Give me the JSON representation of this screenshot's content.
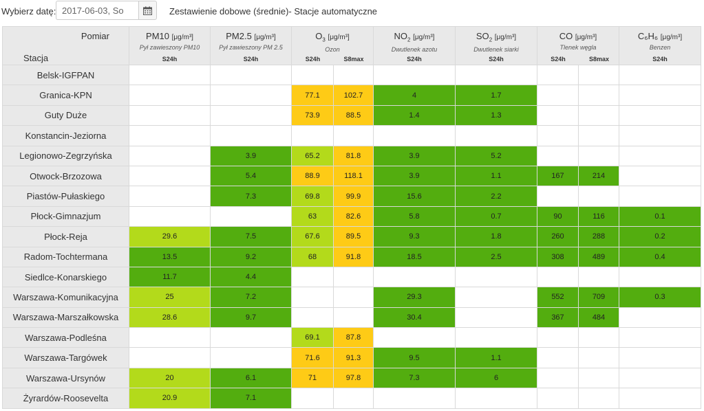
{
  "topbar": {
    "date_label": "Wybierz datę:",
    "date_value": "2017-06-03, So",
    "calendar_icon": "calendar-icon",
    "title": "Zestawienie dobowe (średnie)- Stacje automatyczne"
  },
  "table": {
    "corner_measure": "Pomiar",
    "corner_station": "Stacja",
    "unit": "[μg/m³]",
    "pollutants": [
      {
        "name": "PM10",
        "desc": "Pył zawieszony PM10",
        "types": [
          "S24h"
        ]
      },
      {
        "name": "PM2.5",
        "desc": "Pył zawieszony PM 2.5",
        "types": [
          "S24h"
        ]
      },
      {
        "name": "O",
        "sub": "3",
        "desc": "Ozon",
        "types": [
          "S24h",
          "S8max"
        ]
      },
      {
        "name": "NO",
        "sub": "2",
        "desc": "Dwutlenek azotu",
        "types": [
          "S24h"
        ]
      },
      {
        "name": "SO",
        "sub": "2",
        "desc": "Dwutlenek siarki",
        "types": [
          "S24h"
        ]
      },
      {
        "name": "CO",
        "desc": "Tlenek węgla",
        "types": [
          "S24h",
          "S8max"
        ]
      },
      {
        "name": "C₆H₆",
        "desc": "Benzen",
        "types": [
          "S24h"
        ]
      }
    ],
    "colors": {
      "green": "#53ad0f",
      "lime": "#b3da1b",
      "yellow": "#fecb16"
    },
    "rows": [
      {
        "station": "Belsk-IGFPAN",
        "cells": [
          [
            "",
            ""
          ],
          [
            "",
            ""
          ],
          [
            "",
            ""
          ],
          [
            "",
            ""
          ],
          [
            "",
            ""
          ],
          [
            "",
            ""
          ],
          [
            "",
            ""
          ],
          [
            "",
            ""
          ],
          [
            "",
            ""
          ]
        ]
      },
      {
        "station": "Granica-KPN",
        "cells": [
          [
            "",
            ""
          ],
          [
            "",
            ""
          ],
          [
            "77.1",
            "yellow"
          ],
          [
            "102.7",
            "yellow"
          ],
          [
            "4",
            "green"
          ],
          [
            "1.7",
            "green"
          ],
          [
            "",
            ""
          ],
          [
            "",
            ""
          ],
          [
            "",
            ""
          ]
        ]
      },
      {
        "station": "Guty Duże",
        "cells": [
          [
            "",
            ""
          ],
          [
            "",
            ""
          ],
          [
            "73.9",
            "yellow"
          ],
          [
            "88.5",
            "yellow"
          ],
          [
            "1.4",
            "green"
          ],
          [
            "1.3",
            "green"
          ],
          [
            "",
            ""
          ],
          [
            "",
            ""
          ],
          [
            "",
            ""
          ]
        ]
      },
      {
        "station": "Konstancin-Jeziorna",
        "cells": [
          [
            "",
            ""
          ],
          [
            "",
            ""
          ],
          [
            "",
            ""
          ],
          [
            "",
            ""
          ],
          [
            "",
            ""
          ],
          [
            "",
            ""
          ],
          [
            "",
            ""
          ],
          [
            "",
            ""
          ],
          [
            "",
            ""
          ]
        ]
      },
      {
        "station": "Legionowo-Zegrzyńska",
        "cells": [
          [
            "",
            ""
          ],
          [
            "3.9",
            "green"
          ],
          [
            "65.2",
            "lime"
          ],
          [
            "81.8",
            "yellow"
          ],
          [
            "3.9",
            "green"
          ],
          [
            "5.2",
            "green"
          ],
          [
            "",
            ""
          ],
          [
            "",
            ""
          ],
          [
            "",
            ""
          ]
        ]
      },
      {
        "station": "Otwock-Brzozowa",
        "cells": [
          [
            "",
            ""
          ],
          [
            "5.4",
            "green"
          ],
          [
            "88.9",
            "yellow"
          ],
          [
            "118.1",
            "yellow"
          ],
          [
            "3.9",
            "green"
          ],
          [
            "1.1",
            "green"
          ],
          [
            "167",
            "green"
          ],
          [
            "214",
            "green"
          ],
          [
            "",
            ""
          ]
        ]
      },
      {
        "station": "Piastów-Pułaskiego",
        "cells": [
          [
            "",
            ""
          ],
          [
            "7.3",
            "green"
          ],
          [
            "69.8",
            "lime"
          ],
          [
            "99.9",
            "yellow"
          ],
          [
            "15.6",
            "green"
          ],
          [
            "2.2",
            "green"
          ],
          [
            "",
            ""
          ],
          [
            "",
            ""
          ],
          [
            "",
            ""
          ]
        ]
      },
      {
        "station": "Płock-Gimnazjum",
        "cells": [
          [
            "",
            ""
          ],
          [
            "",
            ""
          ],
          [
            "63",
            "lime"
          ],
          [
            "82.6",
            "yellow"
          ],
          [
            "5.8",
            "green"
          ],
          [
            "0.7",
            "green"
          ],
          [
            "90",
            "green"
          ],
          [
            "116",
            "green"
          ],
          [
            "0.1",
            "green"
          ]
        ]
      },
      {
        "station": "Płock-Reja",
        "cells": [
          [
            "29.6",
            "lime"
          ],
          [
            "7.5",
            "green"
          ],
          [
            "67.6",
            "lime"
          ],
          [
            "89.5",
            "yellow"
          ],
          [
            "9.3",
            "green"
          ],
          [
            "1.8",
            "green"
          ],
          [
            "260",
            "green"
          ],
          [
            "288",
            "green"
          ],
          [
            "0.2",
            "green"
          ]
        ]
      },
      {
        "station": "Radom-Tochtermana",
        "cells": [
          [
            "13.5",
            "green"
          ],
          [
            "9.2",
            "green"
          ],
          [
            "68",
            "lime"
          ],
          [
            "91.8",
            "yellow"
          ],
          [
            "18.5",
            "green"
          ],
          [
            "2.5",
            "green"
          ],
          [
            "308",
            "green"
          ],
          [
            "489",
            "green"
          ],
          [
            "0.4",
            "green"
          ]
        ]
      },
      {
        "station": "Siedlce-Konarskiego",
        "cells": [
          [
            "11.7",
            "green"
          ],
          [
            "4.4",
            "green"
          ],
          [
            "",
            ""
          ],
          [
            "",
            ""
          ],
          [
            "",
            ""
          ],
          [
            "",
            ""
          ],
          [
            "",
            ""
          ],
          [
            "",
            ""
          ],
          [
            "",
            ""
          ]
        ]
      },
      {
        "station": "Warszawa-Komunikacyjna",
        "cells": [
          [
            "25",
            "lime"
          ],
          [
            "7.2",
            "green"
          ],
          [
            "",
            ""
          ],
          [
            "",
            ""
          ],
          [
            "29.3",
            "green"
          ],
          [
            "",
            ""
          ],
          [
            "552",
            "green"
          ],
          [
            "709",
            "green"
          ],
          [
            "0.3",
            "green"
          ]
        ]
      },
      {
        "station": "Warszawa-Marszałkowska",
        "cells": [
          [
            "28.6",
            "lime"
          ],
          [
            "9.7",
            "green"
          ],
          [
            "",
            ""
          ],
          [
            "",
            ""
          ],
          [
            "30.4",
            "green"
          ],
          [
            "",
            ""
          ],
          [
            "367",
            "green"
          ],
          [
            "484",
            "green"
          ],
          [
            "",
            ""
          ]
        ]
      },
      {
        "station": "Warszawa-Podleśna",
        "cells": [
          [
            "",
            ""
          ],
          [
            "",
            ""
          ],
          [
            "69.1",
            "lime"
          ],
          [
            "87.8",
            "yellow"
          ],
          [
            "",
            ""
          ],
          [
            "",
            ""
          ],
          [
            "",
            ""
          ],
          [
            "",
            ""
          ],
          [
            "",
            ""
          ]
        ]
      },
      {
        "station": "Warszawa-Targówek",
        "cells": [
          [
            "",
            ""
          ],
          [
            "",
            ""
          ],
          [
            "71.6",
            "yellow"
          ],
          [
            "91.3",
            "yellow"
          ],
          [
            "9.5",
            "green"
          ],
          [
            "1.1",
            "green"
          ],
          [
            "",
            ""
          ],
          [
            "",
            ""
          ],
          [
            "",
            ""
          ]
        ]
      },
      {
        "station": "Warszawa-Ursynów",
        "cells": [
          [
            "20",
            "lime"
          ],
          [
            "6.1",
            "green"
          ],
          [
            "71",
            "yellow"
          ],
          [
            "97.8",
            "yellow"
          ],
          [
            "7.3",
            "green"
          ],
          [
            "6",
            "green"
          ],
          [
            "",
            ""
          ],
          [
            "",
            ""
          ],
          [
            "",
            ""
          ]
        ]
      },
      {
        "station": "Żyrardów-Roosevelta",
        "cells": [
          [
            "20.9",
            "lime"
          ],
          [
            "7.1",
            "green"
          ],
          [
            "",
            ""
          ],
          [
            "",
            ""
          ],
          [
            "",
            ""
          ],
          [
            "",
            ""
          ],
          [
            "",
            ""
          ],
          [
            "",
            ""
          ],
          [
            "",
            ""
          ]
        ]
      }
    ]
  }
}
